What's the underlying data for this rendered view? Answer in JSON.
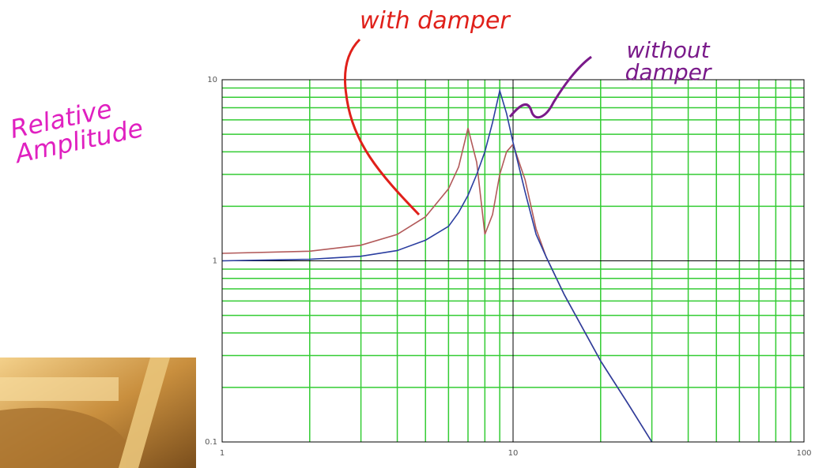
{
  "chart_data": {
    "type": "line",
    "ylabel": "Relative Amplitude",
    "x": [
      1,
      2,
      3,
      4,
      5,
      6,
      6.5,
      7,
      7.5,
      8,
      8.5,
      9,
      9.5,
      10,
      11,
      12,
      13,
      15,
      20,
      25,
      30
    ],
    "series": [
      {
        "name": "with damper",
        "color": "#b25a5a",
        "values": [
          1.1,
          1.13,
          1.22,
          1.4,
          1.75,
          2.5,
          3.3,
          5.4,
          3.5,
          1.4,
          1.8,
          3.0,
          4.0,
          4.4,
          2.8,
          1.5,
          1.05,
          0.65,
          0.28,
          0.16,
          0.1
        ]
      },
      {
        "name": "without damper",
        "color": "#2b3ea0",
        "values": [
          1,
          1.02,
          1.06,
          1.14,
          1.3,
          1.55,
          1.85,
          2.3,
          3.0,
          4.0,
          5.8,
          8.7,
          6.5,
          4.5,
          2.4,
          1.4,
          1.05,
          0.65,
          0.28,
          0.16,
          0.1
        ]
      }
    ],
    "xlim": [
      1,
      100
    ],
    "ylim": [
      0.1,
      10
    ],
    "xticks": [
      1,
      10,
      100
    ],
    "yticks": [
      0.1,
      1,
      10
    ],
    "xscale": "log",
    "yscale": "log",
    "grid": true,
    "minor_grid_color": "#33cc33",
    "major_grid_color": "#000000"
  }
}
